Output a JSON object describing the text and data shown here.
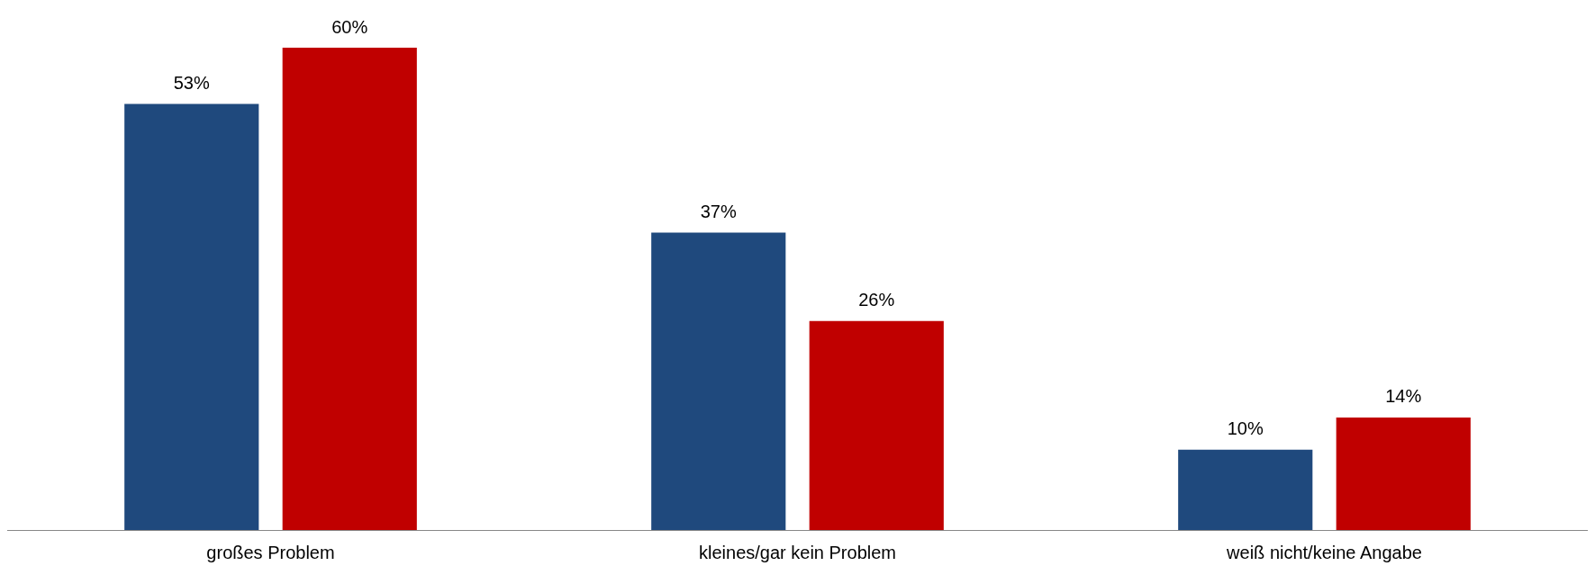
{
  "chart_data": {
    "type": "bar",
    "categories": [
      "großes Problem",
      "kleines/gar kein Problem",
      "weiß nicht/keine Angabe"
    ],
    "series": [
      {
        "color": "#1f497d",
        "values": [
          53,
          37,
          10
        ],
        "value_labels": [
          "53%",
          "37%",
          "10%"
        ]
      },
      {
        "color": "#c00000",
        "values": [
          60,
          26,
          14
        ],
        "value_labels": [
          "60%",
          "26%",
          "14%"
        ]
      }
    ],
    "grid": false,
    "legend": false
  }
}
